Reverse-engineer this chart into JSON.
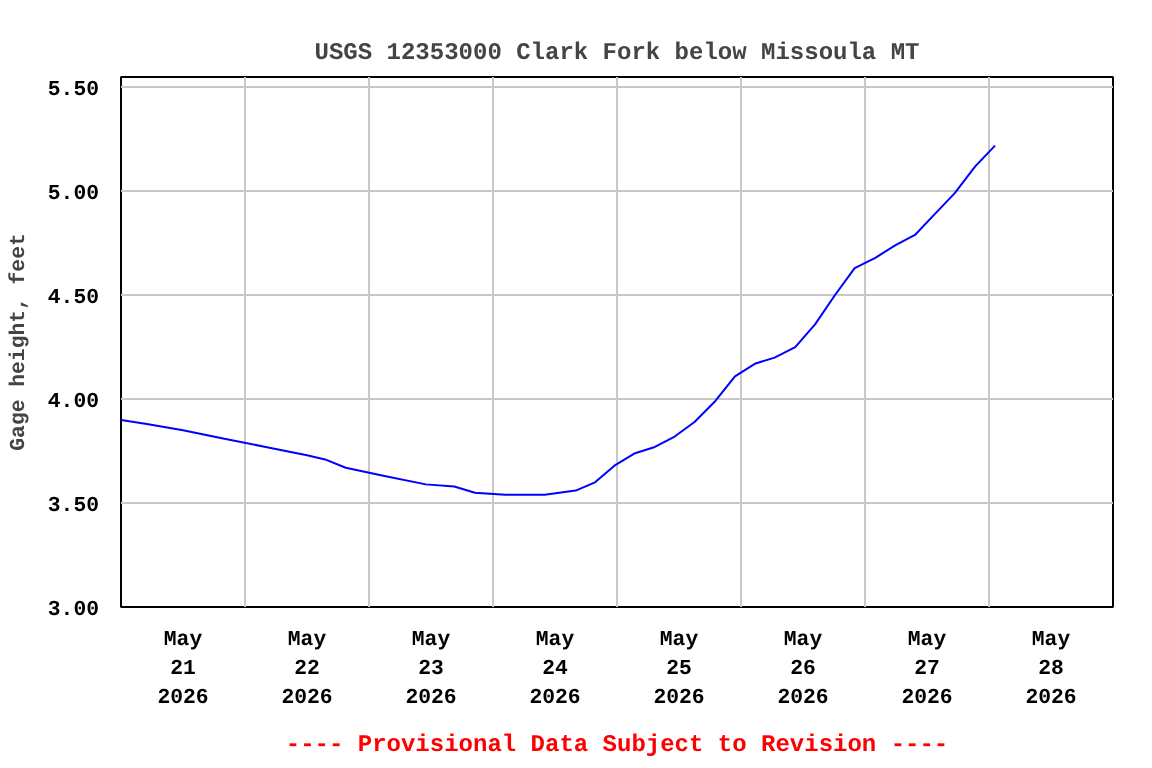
{
  "chart_data": {
    "type": "line",
    "title": "USGS 12353000 Clark Fork below Missoula MT",
    "ylabel": "Gage height, feet",
    "annotations": [
      "---- Provisional Data Subject to Revision ----"
    ],
    "x": [
      "2026-05-21T00:00",
      "2026-05-21T05:00",
      "2026-05-21T12:00",
      "2026-05-21T20:00",
      "2026-05-22T04:00",
      "2026-05-22T12:00",
      "2026-05-22T15:30",
      "2026-05-22T19:30",
      "2026-05-23T03:00",
      "2026-05-23T11:00",
      "2026-05-23T16:30",
      "2026-05-23T20:30",
      "2026-05-24T02:20",
      "2026-05-24T10:00",
      "2026-05-24T16:00",
      "2026-05-24T19:45",
      "2026-05-24T23:30",
      "2026-05-25T03:30",
      "2026-05-25T07:20",
      "2026-05-25T11:10",
      "2026-05-25T15:00",
      "2026-05-25T19:00",
      "2026-05-25T22:50",
      "2026-05-26T02:40",
      "2026-05-26T06:30",
      "2026-05-26T10:30",
      "2026-05-26T14:20",
      "2026-05-26T18:10",
      "2026-05-26T22:00",
      "2026-05-27T02:00",
      "2026-05-27T05:50",
      "2026-05-27T09:40",
      "2026-05-27T13:30",
      "2026-05-27T17:20",
      "2026-05-27T21:20",
      "2026-05-28T01:10"
    ],
    "series": [
      {
        "color": "#0000ff",
        "values": [
          3.9,
          3.88,
          3.85,
          3.81,
          3.77,
          3.73,
          3.71,
          3.67,
          3.63,
          3.59,
          3.58,
          3.55,
          3.54,
          3.54,
          3.56,
          3.6,
          3.68,
          3.74,
          3.77,
          3.82,
          3.89,
          3.99,
          4.11,
          4.17,
          4.2,
          4.25,
          4.36,
          4.5,
          4.63,
          4.68,
          4.74,
          4.79,
          4.89,
          4.99,
          5.12,
          5.22
        ]
      }
    ],
    "xlim": [
      "2026-05-21T00:00",
      "2026-05-29T00:00"
    ],
    "xticks": [
      {
        "value": "2026-05-21T12:00",
        "label": "May\n21\n2026"
      },
      {
        "value": "2026-05-22T00:00",
        "label": null
      },
      {
        "value": "2026-05-22T12:00",
        "label": "May\n22\n2026"
      },
      {
        "value": "2026-05-23T00:00",
        "label": null
      },
      {
        "value": "2026-05-23T12:00",
        "label": "May\n23\n2026"
      },
      {
        "value": "2026-05-24T00:00",
        "label": null
      },
      {
        "value": "2026-05-24T12:00",
        "label": "May\n24\n2026"
      },
      {
        "value": "2026-05-25T00:00",
        "label": null
      },
      {
        "value": "2026-05-25T12:00",
        "label": "May\n25\n2026"
      },
      {
        "value": "2026-05-26T00:00",
        "label": null
      },
      {
        "value": "2026-05-26T12:00",
        "label": "May\n26\n2026"
      },
      {
        "value": "2026-05-27T00:00",
        "label": null
      },
      {
        "value": "2026-05-27T12:00",
        "label": "May\n27\n2026"
      },
      {
        "value": "2026-05-28T00:00",
        "label": null
      },
      {
        "value": "2026-05-28T12:00",
        "label": "May\n28\n2026"
      }
    ],
    "ylim": [
      3.0,
      5.55
    ],
    "yticks": [
      {
        "value": 3.0,
        "label": "3.00"
      },
      {
        "value": 3.5,
        "label": "3.50"
      },
      {
        "value": 4.0,
        "label": "4.00"
      },
      {
        "value": 4.5,
        "label": "4.50"
      },
      {
        "value": 5.0,
        "label": "5.00"
      },
      {
        "value": 5.5,
        "label": "5.50"
      }
    ],
    "grid": true,
    "line_style": "solid"
  }
}
